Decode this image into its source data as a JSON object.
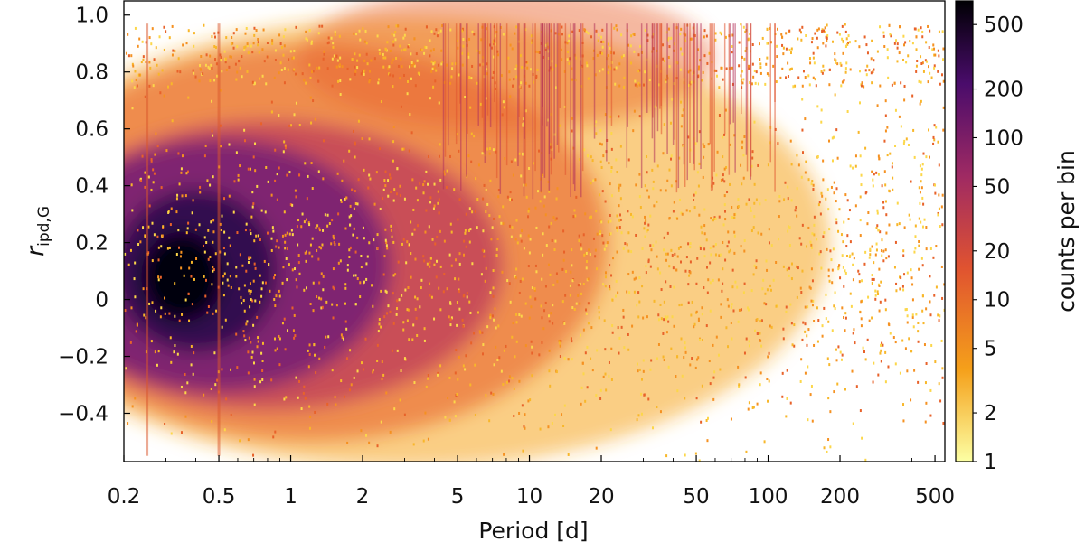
{
  "chart_data": {
    "type": "heatmap",
    "xlabel": "Period [d]",
    "ylabel": "r",
    "ylabel_sub": "ipd,G",
    "x_scale": "log",
    "xlim": [
      0.2,
      550
    ],
    "ylim": [
      -0.57,
      1.05
    ],
    "x_ticks": [
      {
        "value": 0.2,
        "label": "0.2"
      },
      {
        "value": 0.5,
        "label": "0.5"
      },
      {
        "value": 1,
        "label": "1"
      },
      {
        "value": 2,
        "label": "2"
      },
      {
        "value": 5,
        "label": "5"
      },
      {
        "value": 10,
        "label": "10"
      },
      {
        "value": 20,
        "label": "20"
      },
      {
        "value": 50,
        "label": "50"
      },
      {
        "value": 100,
        "label": "100"
      },
      {
        "value": 200,
        "label": "200"
      },
      {
        "value": 500,
        "label": "500"
      }
    ],
    "y_ticks": [
      {
        "value": 1.0,
        "label": "1.0"
      },
      {
        "value": 0.8,
        "label": "0.8"
      },
      {
        "value": 0.6,
        "label": "0.6"
      },
      {
        "value": 0.4,
        "label": "0.4"
      },
      {
        "value": 0.2,
        "label": "0.2"
      },
      {
        "value": 0,
        "label": "0"
      },
      {
        "value": -0.2,
        "label": "−0.2"
      },
      {
        "value": -0.4,
        "label": "−0.4"
      }
    ],
    "colorbar": {
      "label": "counts per bin",
      "scale": "log",
      "range": [
        1,
        700
      ],
      "colormap": "inferno_r",
      "ticks": [
        {
          "value": 500,
          "label": "500"
        },
        {
          "value": 200,
          "label": "200"
        },
        {
          "value": 100,
          "label": "100"
        },
        {
          "value": 50,
          "label": "50"
        },
        {
          "value": 20,
          "label": "20"
        },
        {
          "value": 10,
          "label": "10"
        },
        {
          "value": 5,
          "label": "5"
        },
        {
          "value": 2,
          "label": "2"
        },
        {
          "value": 1,
          "label": "1"
        }
      ]
    },
    "density_peak": {
      "period": 0.35,
      "r": 0.08,
      "counts": 600
    },
    "grid": false
  }
}
